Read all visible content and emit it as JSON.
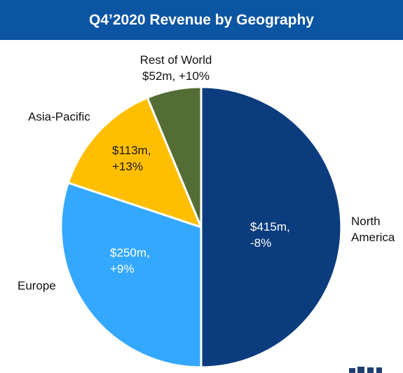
{
  "colors": {
    "title_bg": "#0b55a3",
    "north_america": "#0b3c7d",
    "europe": "#34a8ff",
    "asia_pacific": "#ffbf00",
    "rest_of_world": "#546d35",
    "slice_border": "#ffffff"
  },
  "chart_data": {
    "type": "pie",
    "title": "Q4’2020 Revenue by Geography",
    "unit": "$m",
    "slices": [
      {
        "name": "North America",
        "value": 415,
        "value_label": "$415m,",
        "change_label": "-8%"
      },
      {
        "name": "Europe",
        "value": 250,
        "value_label": "$250m,",
        "change_label": "+9%"
      },
      {
        "name": "Asia-Pacific",
        "value": 113,
        "value_label": "$113m,",
        "change_label": "+13%"
      },
      {
        "name": "Rest of World",
        "value": 52,
        "value_label": "$52m,",
        "change_label": "+10%"
      }
    ],
    "outside_labels": {
      "north_america": [
        "North",
        "America"
      ],
      "europe": "Europe",
      "asia_pacific": "Asia-Pacific",
      "rest_of_world": "Rest of World",
      "rest_of_world_detail": "$52m, +10%"
    }
  }
}
